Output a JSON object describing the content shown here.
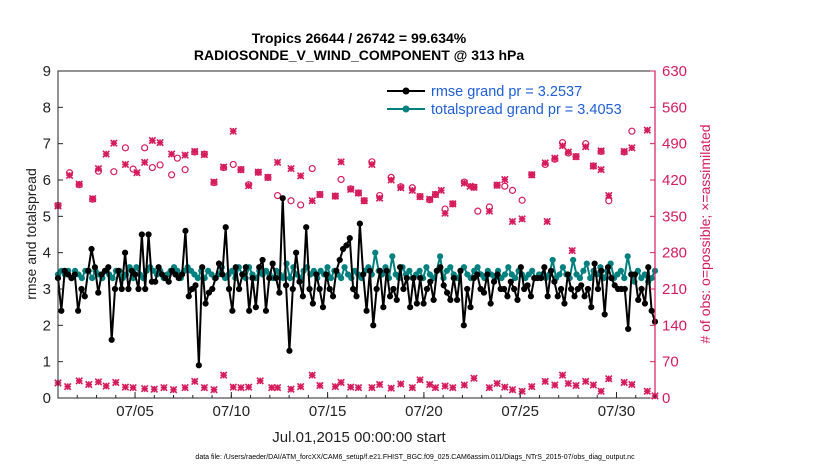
{
  "chart_data": {
    "type": "line",
    "title_line1": "Tropics 26644 / 26742 = 99.634%",
    "title_line2": "RADIOSONDE_V_WIND_COMPONENT @ 313 hPa",
    "xlabel": "Jul.01,2015 00:00:00 start",
    "ylabel_left": "rmse and totalspread",
    "ylabel_right": "# of obs: o=possible; ×=assimilated",
    "footer": "data file: /Users/raeder/DAI/ATM_forcXX/CAM6_setup/f.e21.FHIST_BGC.f09_025.CAM6assim.011/Diags_NTrS_2015-07/obs_diag_output.nc",
    "x_range": [
      1,
      32
    ],
    "ylim_left": [
      0,
      9
    ],
    "ylim_right": [
      0,
      630
    ],
    "x_ticks": [
      {
        "value": 5,
        "label": "07/05"
      },
      {
        "value": 10,
        "label": "07/10"
      },
      {
        "value": 15,
        "label": "07/15"
      },
      {
        "value": 20,
        "label": "07/20"
      },
      {
        "value": 25,
        "label": "07/25"
      },
      {
        "value": 30,
        "label": "07/30"
      }
    ],
    "y_ticks_left": [
      "0",
      "1",
      "2",
      "3",
      "4",
      "5",
      "6",
      "7",
      "8",
      "9"
    ],
    "y_ticks_right": [
      "0",
      "70",
      "140",
      "210",
      "280",
      "350",
      "420",
      "490",
      "560",
      "630"
    ],
    "colors": {
      "rmse": "#000000",
      "spread": "#00807f",
      "obs": "#d51c5b",
      "legend_text": "#1f5fd6",
      "right_axis": "#d51c5b"
    },
    "series": [
      {
        "name": "rmse grand pr = 3.2537",
        "color": "#000000",
        "values": [
          3.3,
          2.4,
          3.5,
          3.4,
          3.3,
          3.4,
          2.4,
          3.0,
          2.8,
          3.5,
          4.1,
          3.6,
          2.9,
          3.4,
          3.5,
          3.6,
          1.6,
          3.0,
          3.5,
          3.0,
          4.0,
          3.0,
          3.5,
          3.4,
          3.0,
          4.5,
          3.0,
          4.5,
          3.2,
          3.2,
          3.6,
          3.4,
          3.3,
          3.2,
          3.5,
          3.4,
          3.3,
          3.4,
          4.6,
          2.8,
          3.0,
          3.1,
          0.9,
          3.6,
          2.6,
          2.9,
          3.0,
          3.3,
          3.7,
          3.4,
          4.7,
          3.0,
          2.4,
          3.6,
          3.0,
          3.4,
          3.6,
          2.4,
          3.3,
          2.5,
          3.6,
          3.8,
          2.4,
          3.3,
          3.7,
          3.3,
          2.9,
          5.5,
          3.1,
          1.3,
          3.0,
          4.0,
          3.2,
          2.8,
          4.7,
          3.0,
          2.6,
          3.4,
          3.0,
          2.5,
          3.4,
          3.0,
          2.8,
          3.5,
          3.8,
          4.1,
          4.2,
          4.4,
          3.0,
          2.8,
          4.8,
          3.4,
          2.4,
          3.5,
          2.0,
          3.0,
          3.5,
          2.5,
          3.5,
          2.8,
          3.0,
          2.7,
          3.6,
          3.0,
          3.3,
          2.5,
          3.3,
          2.6,
          3.3,
          2.6,
          3.0,
          3.2,
          2.7,
          3.5,
          3.6,
          3.1,
          2.9,
          2.7,
          3.3,
          2.7,
          3.5,
          2.0,
          3.0,
          2.5,
          3.3,
          3.4,
          3.0,
          2.9,
          3.4,
          2.6,
          3.2,
          3.4,
          3.0,
          3.0,
          2.8,
          3.2,
          3.0,
          2.7,
          3.6,
          3.0,
          3.1,
          2.8,
          3.3,
          3.3,
          3.3,
          3.6,
          2.8,
          3.5,
          3.2,
          2.8,
          3.0,
          2.6,
          3.4,
          3.0,
          2.8,
          3.0,
          3.1,
          2.8,
          3.0,
          2.5,
          3.7,
          3.0,
          3.5,
          2.3,
          3.6,
          3.3,
          3.1,
          3.0,
          3.0,
          3.0,
          1.9,
          3.4,
          3.4,
          2.7,
          3.0,
          2.6,
          3.6,
          2.4,
          2.1
        ]
      },
      {
        "name": "totalspread grand pr = 3.4053",
        "color": "#00807f",
        "values": [
          3.4,
          3.5,
          3.4,
          3.5,
          3.3,
          3.5,
          3.4,
          3.3,
          3.5,
          3.5,
          3.3,
          3.5,
          3.4,
          3.3,
          3.5,
          3.4,
          3.3,
          3.5,
          3.5,
          3.3,
          3.4,
          3.6,
          3.3,
          3.6,
          3.4,
          3.3,
          3.5,
          3.6,
          3.5,
          3.4,
          3.5,
          3.3,
          3.4,
          3.5,
          3.6,
          3.5,
          3.3,
          3.5,
          3.6,
          3.5,
          3.4,
          3.3,
          3.5,
          3.3,
          3.5,
          3.4,
          3.3,
          3.4,
          3.6,
          3.3,
          3.4,
          3.5,
          3.3,
          3.6,
          3.4,
          3.3,
          3.6,
          3.4,
          3.3,
          3.5,
          3.4,
          3.5,
          3.4,
          3.3,
          3.5,
          3.4,
          3.3,
          3.7,
          3.3,
          3.6,
          3.4,
          3.3,
          3.5,
          3.6,
          3.4,
          3.5,
          3.3,
          3.5,
          3.4,
          3.6,
          3.3,
          3.5,
          3.4,
          3.3,
          3.6,
          3.4,
          3.3,
          3.5,
          3.4,
          3.3,
          3.5,
          3.6,
          3.4,
          4.0,
          3.5,
          3.4,
          3.6,
          3.3,
          3.9,
          3.4,
          3.3,
          3.6,
          3.4,
          3.5,
          3.3,
          3.4,
          3.5,
          3.3,
          3.6,
          3.4,
          3.3,
          3.5,
          3.9,
          3.3,
          3.5,
          3.6,
          3.4,
          3.3,
          3.5,
          3.6,
          3.4,
          3.3,
          3.5,
          3.6,
          3.4,
          3.3,
          3.5,
          3.4,
          3.3,
          3.5,
          3.3,
          3.4,
          3.6,
          3.4,
          3.3,
          3.5,
          3.4,
          3.3,
          3.4,
          3.5,
          3.3,
          3.4,
          3.4,
          3.3,
          3.4,
          3.8,
          3.3,
          3.4,
          3.6,
          3.4,
          3.3,
          3.8,
          3.4,
          3.3,
          3.5,
          3.7,
          3.3,
          3.5,
          3.4,
          3.6,
          3.3,
          3.5,
          3.7,
          3.3,
          3.4,
          3.5,
          3.3,
          3.9,
          3.4,
          3.2,
          3.5,
          3.3,
          3.4,
          3.2,
          3.3,
          3.5
        ]
      }
    ],
    "obs_possible": [
      [
        1,
        371
      ],
      [
        1.6,
        434
      ],
      [
        2.1,
        411
      ],
      [
        2.8,
        383
      ],
      [
        3.1,
        437
      ],
      [
        3.9,
        436
      ],
      [
        4.5,
        482
      ],
      [
        4.9,
        441
      ],
      [
        5.5,
        482
      ],
      [
        5.9,
        444
      ],
      [
        6.3,
        449
      ],
      [
        6.9,
        430
      ],
      [
        7.2,
        462
      ],
      [
        7.6,
        440
      ],
      [
        8.1,
        474
      ],
      [
        8.6,
        470
      ],
      [
        9.1,
        415
      ],
      [
        9.6,
        444
      ],
      [
        10.1,
        450
      ],
      [
        10.5,
        440
      ],
      [
        10.9,
        411
      ],
      [
        11.4,
        435
      ],
      [
        11.9,
        425
      ],
      [
        12.4,
        390
      ],
      [
        13.1,
        380
      ],
      [
        13.6,
        372
      ],
      [
        14.2,
        442
      ],
      [
        14.6,
        392
      ],
      [
        15.4,
        389
      ],
      [
        15.7,
        421
      ],
      [
        16.2,
        403
      ],
      [
        16.6,
        395
      ],
      [
        16.9,
        380
      ],
      [
        17.3,
        455
      ],
      [
        17.7,
        390
      ],
      [
        18.3,
        425
      ],
      [
        18.8,
        407
      ],
      [
        19.4,
        405
      ],
      [
        19.8,
        388
      ],
      [
        20.3,
        382
      ],
      [
        20.6,
        392
      ],
      [
        21.1,
        364
      ],
      [
        21.5,
        374
      ],
      [
        22.1,
        416
      ],
      [
        22.6,
        406
      ],
      [
        22.8,
        360
      ],
      [
        23.4,
        368
      ],
      [
        23.8,
        410
      ],
      [
        24.2,
        408
      ],
      [
        24.6,
        400
      ],
      [
        25.1,
        381
      ],
      [
        25.6,
        430
      ],
      [
        26.3,
        450
      ],
      [
        26.8,
        460
      ],
      [
        27.2,
        492
      ],
      [
        27.5,
        472
      ],
      [
        27.9,
        465
      ],
      [
        28.4,
        490
      ],
      [
        28.8,
        447
      ],
      [
        29.2,
        475
      ],
      [
        29.6,
        380
      ],
      [
        30.4,
        474
      ],
      [
        30.8,
        514
      ]
    ],
    "obs_assimilated": [
      [
        1,
        370
      ],
      [
        1.6,
        429
      ],
      [
        2.1,
        412
      ],
      [
        2.8,
        384
      ],
      [
        3.1,
        442
      ],
      [
        3.5,
        470
      ],
      [
        3.9,
        491
      ],
      [
        4.5,
        450
      ],
      [
        5.1,
        434
      ],
      [
        5.5,
        454
      ],
      [
        5.9,
        496
      ],
      [
        6.3,
        492
      ],
      [
        6.9,
        470
      ],
      [
        7.6,
        468
      ],
      [
        8.1,
        475
      ],
      [
        8.6,
        469
      ],
      [
        9.1,
        416
      ],
      [
        9.6,
        445
      ],
      [
        10.1,
        514
      ],
      [
        10.5,
        440
      ],
      [
        10.9,
        409
      ],
      [
        11.4,
        435
      ],
      [
        11.9,
        425
      ],
      [
        12.4,
        454
      ],
      [
        13.1,
        442
      ],
      [
        13.6,
        428
      ],
      [
        14.2,
        380
      ],
      [
        14.6,
        392
      ],
      [
        15.4,
        389
      ],
      [
        15.7,
        455
      ],
      [
        16.2,
        402
      ],
      [
        16.6,
        395
      ],
      [
        16.9,
        380
      ],
      [
        17.3,
        450
      ],
      [
        17.7,
        385
      ],
      [
        18.3,
        420
      ],
      [
        18.8,
        405
      ],
      [
        19.4,
        400
      ],
      [
        19.8,
        388
      ],
      [
        20.3,
        383
      ],
      [
        20.6,
        392
      ],
      [
        21.1,
        356
      ],
      [
        21.5,
        374
      ],
      [
        22.1,
        414
      ],
      [
        22.6,
        406
      ],
      [
        23.4,
        360
      ],
      [
        23.8,
        410
      ],
      [
        24.2,
        421
      ],
      [
        24.6,
        340
      ],
      [
        25.1,
        345
      ],
      [
        25.6,
        430
      ],
      [
        26.3,
        453
      ],
      [
        26.8,
        462
      ],
      [
        27.2,
        486
      ],
      [
        27.5,
        474
      ],
      [
        27.9,
        465
      ],
      [
        28.4,
        484
      ],
      [
        28.8,
        447
      ],
      [
        29.2,
        476
      ],
      [
        29.6,
        390
      ],
      [
        30.4,
        475
      ],
      [
        30.8,
        482
      ],
      [
        31.6,
        516
      ],
      [
        29.2,
        440
      ],
      [
        27.7,
        284
      ],
      [
        26.4,
        340
      ],
      [
        22.4,
        408
      ],
      [
        20.9,
        400
      ]
    ],
    "obs_bottom": [
      [
        1,
        29
      ],
      [
        1.5,
        22
      ],
      [
        2.1,
        33
      ],
      [
        2.6,
        26
      ],
      [
        3.1,
        31
      ],
      [
        3.5,
        23
      ],
      [
        4.0,
        30
      ],
      [
        4.5,
        21
      ],
      [
        4.9,
        20
      ],
      [
        5.5,
        18
      ],
      [
        6.0,
        17
      ],
      [
        6.5,
        20
      ],
      [
        7.0,
        16
      ],
      [
        7.6,
        20
      ],
      [
        8.1,
        32
      ],
      [
        8.6,
        20
      ],
      [
        9.1,
        16
      ],
      [
        9.6,
        44
      ],
      [
        10.1,
        21
      ],
      [
        10.5,
        20
      ],
      [
        10.9,
        21
      ],
      [
        11.5,
        33
      ],
      [
        12.1,
        20
      ],
      [
        12.4,
        20
      ],
      [
        13.1,
        17
      ],
      [
        13.6,
        22
      ],
      [
        14.2,
        44
      ],
      [
        14.6,
        24
      ],
      [
        15.4,
        22
      ],
      [
        15.7,
        30
      ],
      [
        16.2,
        21
      ],
      [
        16.6,
        20
      ],
      [
        17.3,
        20
      ],
      [
        17.7,
        26
      ],
      [
        18.3,
        19
      ],
      [
        18.8,
        27
      ],
      [
        19.4,
        20
      ],
      [
        19.8,
        35
      ],
      [
        20.3,
        26
      ],
      [
        20.6,
        20
      ],
      [
        21.1,
        23
      ],
      [
        21.5,
        20
      ],
      [
        22.1,
        25
      ],
      [
        22.6,
        38
      ],
      [
        23.4,
        20
      ],
      [
        23.8,
        28
      ],
      [
        24.2,
        21
      ],
      [
        24.6,
        16
      ],
      [
        25.1,
        13
      ],
      [
        25.6,
        22
      ],
      [
        26.3,
        32
      ],
      [
        26.8,
        25
      ],
      [
        27.2,
        44
      ],
      [
        27.5,
        28
      ],
      [
        27.9,
        24
      ],
      [
        28.4,
        32
      ],
      [
        28.8,
        25
      ],
      [
        29.2,
        13
      ],
      [
        29.6,
        37
      ],
      [
        30.4,
        30
      ],
      [
        30.8,
        26
      ],
      [
        31.6,
        13
      ],
      [
        32.0,
        4
      ]
    ]
  }
}
